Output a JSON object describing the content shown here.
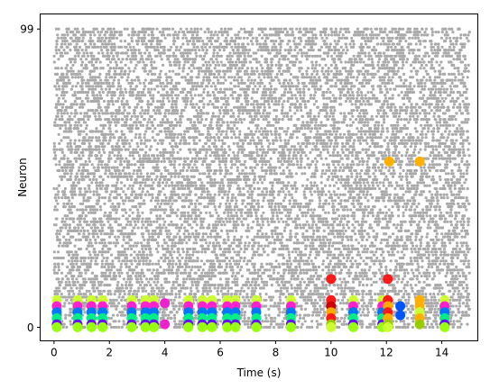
{
  "chart_data": {
    "type": "scatter",
    "title": "",
    "xlabel": "Time (s)",
    "ylabel": "Neuron",
    "xlim": [
      -0.5,
      15.3
    ],
    "ylim": [
      -4.5,
      104
    ],
    "xticks": [
      0,
      2,
      4,
      6,
      8,
      10,
      12,
      14
    ],
    "yticks": [
      0,
      99
    ],
    "grid": false,
    "legend": "none",
    "background_spikes": {
      "color": "#aaaaaa",
      "neuron_range": [
        0,
        99
      ],
      "time_range": [
        0,
        15
      ],
      "approx_rate_hz": 8,
      "seed": 7
    },
    "event_times": [
      0.1,
      0.85,
      1.35,
      1.75,
      2.8,
      3.3,
      3.6,
      4.85,
      5.35,
      5.7,
      6.25,
      6.55,
      7.3,
      8.55,
      10.0,
      10.8,
      11.85,
      12.05,
      13.2,
      14.1
    ],
    "event_colors": [
      "#ccff33",
      "#ff22cc",
      "#0077ff",
      "#00ee88",
      "#6611ee",
      "#99ff11"
    ],
    "event_neurons": [
      9,
      7,
      5,
      3,
      1,
      0
    ],
    "special_events": [
      {
        "t": 10.0,
        "neurons": [
          16,
          9,
          7,
          5,
          3,
          1,
          0
        ],
        "colors": [
          "#ff1a1a",
          "#ff1a1a",
          "#cc0000",
          "#ffaa00",
          "#ff1a1a",
          "#99cc00",
          "#ccff33"
        ]
      },
      {
        "t": 12.05,
        "neurons": [
          16,
          9,
          7,
          5,
          3,
          1,
          0
        ],
        "colors": [
          "#ff1a1a",
          "#ff1a1a",
          "#ffaa00",
          "#ff1a1a",
          "#ffaa00",
          "#99cc00",
          "#ccff33"
        ]
      },
      {
        "t": 12.1,
        "neurons": [
          55
        ],
        "colors": [
          "#ffb000"
        ]
      },
      {
        "t": 13.2,
        "neurons": [
          55,
          9,
          7,
          5,
          3,
          1
        ],
        "colors": [
          "#ffb000",
          "#ffb000",
          "#ffb000",
          "#ccff33",
          "#ffb000",
          "#99cc00"
        ]
      },
      {
        "t": 12.5,
        "neurons": [
          7,
          4
        ],
        "colors": [
          "#0055ff",
          "#0055ff"
        ]
      },
      {
        "t": 4.0,
        "neurons": [
          8,
          1
        ],
        "colors": [
          "#ee22cc",
          "#ee22cc"
        ]
      }
    ]
  }
}
